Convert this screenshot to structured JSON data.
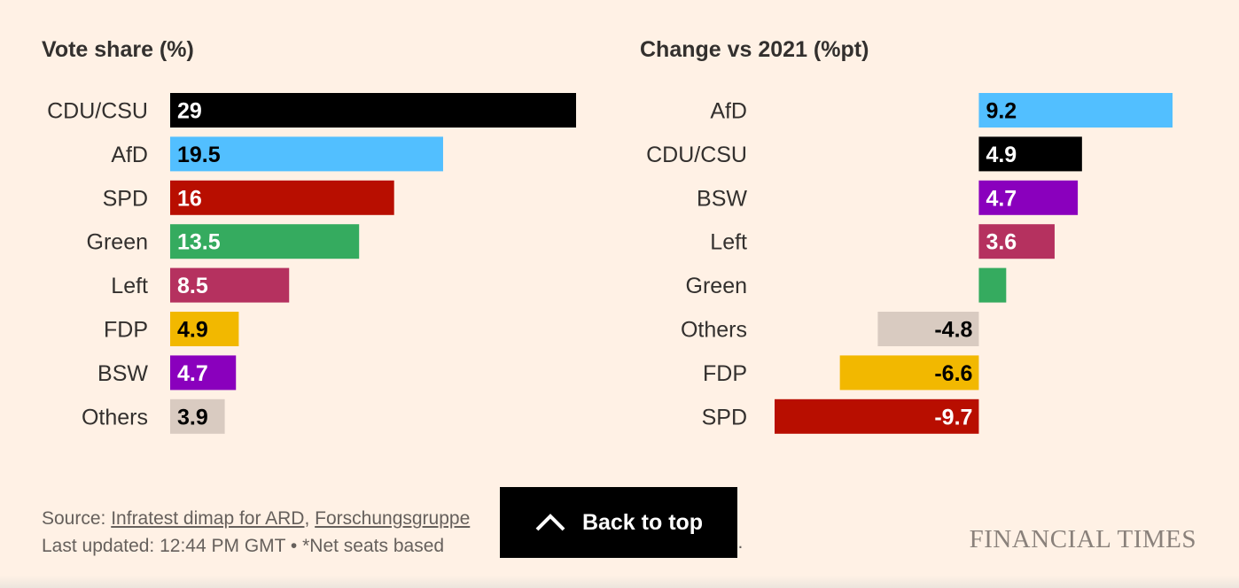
{
  "chart_data": [
    {
      "type": "bar",
      "orientation": "horizontal",
      "title": "Vote share (%)",
      "categories": [
        "CDU/CSU",
        "AfD",
        "SPD",
        "Green",
        "Left",
        "FDP",
        "BSW",
        "Others"
      ],
      "values": [
        29,
        19.5,
        16,
        13.5,
        8.5,
        4.9,
        4.7,
        3.9
      ],
      "colors": [
        "#000000",
        "#52bfff",
        "#b80e00",
        "#35ab5f",
        "#b5315f",
        "#f2b800",
        "#8a00bd",
        "#d9cbc1"
      ],
      "label_colors": [
        "#ffffff",
        "#000000",
        "#ffffff",
        "#ffffff",
        "#ffffff",
        "#000000",
        "#ffffff",
        "#000000"
      ],
      "value_labels": [
        "29",
        "19.5",
        "16",
        "13.5",
        "8.5",
        "4.9",
        "4.7",
        "3.9"
      ],
      "xlim": [
        0,
        29
      ]
    },
    {
      "type": "bar",
      "orientation": "horizontal",
      "title": "Change vs 2021 (%pt)",
      "categories": [
        "AfD",
        "CDU/CSU",
        "BSW",
        "Left",
        "Green",
        "Others",
        "FDP",
        "SPD"
      ],
      "values": [
        9.2,
        4.9,
        4.7,
        3.6,
        1.3,
        -4.8,
        -6.6,
        -9.7
      ],
      "colors": [
        "#52bfff",
        "#000000",
        "#8a00bd",
        "#b5315f",
        "#35ab5f",
        "#d9cbc1",
        "#f2b800",
        "#b80e00"
      ],
      "label_colors": [
        "#000000",
        "#ffffff",
        "#ffffff",
        "#ffffff",
        "#ffffff",
        "#000000",
        "#000000",
        "#ffffff"
      ],
      "value_labels": [
        "9.2",
        "4.9",
        "4.7",
        "3.6",
        "",
        "-4.8",
        "-6.6",
        "-9.7"
      ],
      "xlim": [
        -9.7,
        9.2
      ]
    }
  ],
  "footer": {
    "source_label": "Source: ",
    "source_link_1": "Infratest dimap for ARD",
    "source_sep": ", ",
    "source_link_2": "Forschungsgruppe",
    "updated_text": "Last updated: 12:44 PM GMT • *Net seats based",
    "trailing_fragment": "s."
  },
  "back_to_top": {
    "label": "Back to top",
    "icon": "chevron-up-icon"
  },
  "brand": {
    "logo_text": "FINANCIAL TIMES"
  }
}
